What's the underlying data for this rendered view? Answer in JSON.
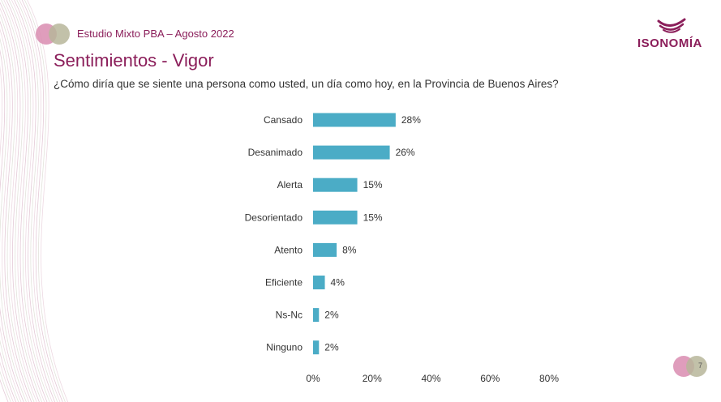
{
  "header": {
    "study_label": "Estudio Mixto PBA – Agosto 2022",
    "title": "Sentimientos - Vigor",
    "subtitle": "¿Cómo diría que se siente una persona como usted, un día como hoy, en la Provincia de Buenos Aires?",
    "brand": "ISONOMÍA"
  },
  "footer": {
    "page_number": "7"
  },
  "colors": {
    "accent": "#8b1e5a",
    "bar": "#4bacc6",
    "circle_pink": "#d98cb0",
    "circle_olive": "#b7b69a"
  },
  "chart_data": {
    "type": "bar",
    "orientation": "horizontal",
    "categories": [
      "Cansado",
      "Desanimado",
      "Alerta",
      "Desorientado",
      "Atento",
      "Eficiente",
      "Ns-Nc",
      "Ninguno"
    ],
    "values": [
      28,
      26,
      15,
      15,
      8,
      4,
      2,
      2
    ],
    "value_labels": [
      "28%",
      "26%",
      "15%",
      "15%",
      "8%",
      "4%",
      "2%",
      "2%"
    ],
    "xlim": [
      0,
      80
    ],
    "x_ticks": [
      0,
      20,
      40,
      60,
      80
    ],
    "x_tick_labels": [
      "0%",
      "20%",
      "40%",
      "60%",
      "80%"
    ],
    "grid": false,
    "legend": false
  }
}
